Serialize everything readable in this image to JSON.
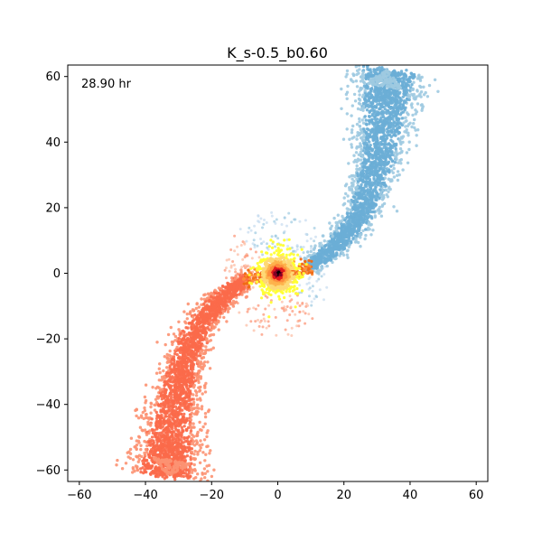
{
  "chart_data": {
    "type": "scatter",
    "title": "K_s-0.5_b0.60",
    "annotation": "28.90 hr",
    "xlabel": "",
    "ylabel": "",
    "xlim": [
      -63.5,
      63.5
    ],
    "ylim": [
      -63.5,
      63.5
    ],
    "xticks": [
      -60,
      -40,
      -20,
      0,
      20,
      40,
      60
    ],
    "yticks": [
      -60,
      -40,
      -20,
      0,
      20,
      40,
      60
    ],
    "grid": false,
    "legend": "none",
    "series": [
      {
        "role": "upper-tidal-tail",
        "colors": [
          "#6baed6",
          "#9ecae1",
          "#c6dbef"
        ],
        "centerline": [
          [
            9,
            1.5
          ],
          [
            15,
            6
          ],
          [
            20,
            11
          ],
          [
            25,
            18
          ],
          [
            28,
            26
          ],
          [
            30,
            34
          ],
          [
            31.5,
            42
          ],
          [
            32.5,
            50
          ],
          [
            33,
            56
          ],
          [
            34,
            62
          ]
        ],
        "spread": [
          1.2,
          1.6,
          2.0,
          2.4,
          2.8,
          3.2,
          3.8,
          4.5,
          5.0,
          5.5
        ],
        "tip": [
          [
            26,
            58
          ],
          [
            38,
            56
          ],
          [
            33,
            62
          ]
        ]
      },
      {
        "role": "lower-tidal-tail",
        "colors": [
          "#fb6a4a",
          "#fc9272",
          "#fcbba1"
        ],
        "centerline": [
          [
            -9,
            -1.5
          ],
          [
            -15,
            -6
          ],
          [
            -20,
            -11
          ],
          [
            -25,
            -18
          ],
          [
            -28,
            -26
          ],
          [
            -30,
            -34
          ],
          [
            -31.5,
            -42
          ],
          [
            -32.5,
            -50
          ],
          [
            -33,
            -56
          ],
          [
            -34,
            -62
          ]
        ],
        "spread": [
          1.2,
          1.6,
          2.0,
          2.4,
          2.8,
          3.2,
          3.8,
          4.5,
          5.0,
          5.5
        ],
        "tip": [
          [
            -26,
            -58
          ],
          [
            -38,
            -56
          ],
          [
            -33,
            -62
          ]
        ]
      },
      {
        "role": "inner-bridge",
        "colors": [
          "#f16913",
          "#fd8d3c"
        ],
        "segment": [
          [
            -10,
            -1.5
          ],
          [
            10,
            1.5
          ]
        ],
        "spread": 1.0
      },
      {
        "role": "core",
        "colors": [
          "#ffff33",
          "#fed976",
          "#feb24c",
          "#fd8d3c",
          "#e31a1c",
          "#800026",
          "#000000"
        ],
        "center": [
          0,
          0
        ],
        "radius": 7.5
      },
      {
        "role": "halo",
        "colors": [
          "#9ecae1",
          "#c6dbef",
          "#fcbba1",
          "#fc9272"
        ],
        "center": [
          0,
          0
        ],
        "radius": 20
      }
    ]
  }
}
